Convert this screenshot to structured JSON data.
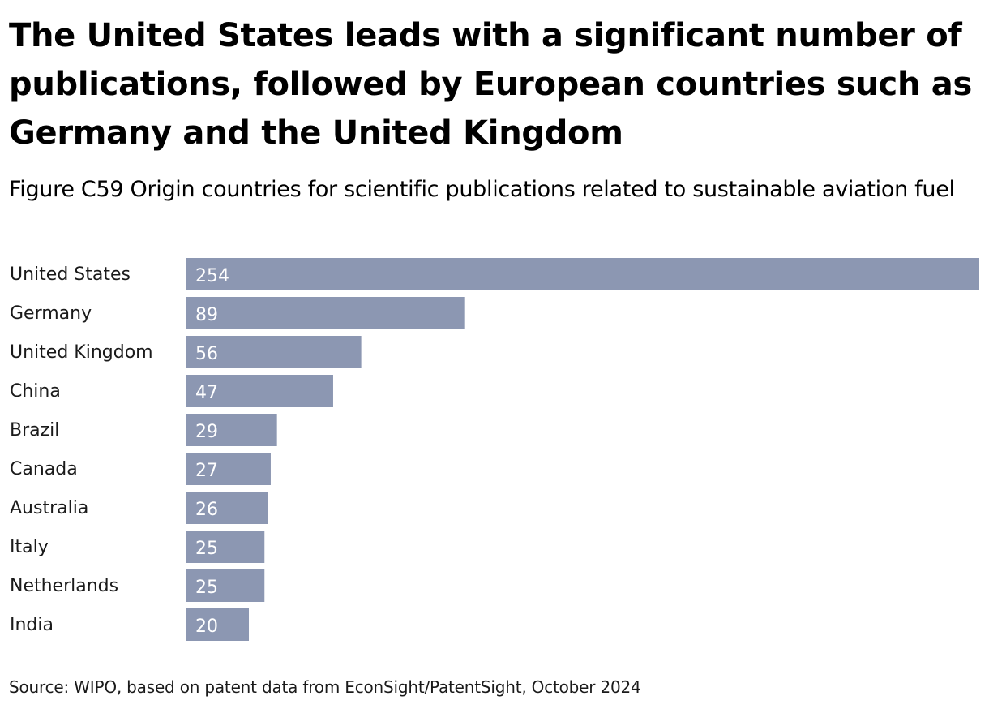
{
  "title": "The United States leads with a significant number of publications, followed by European countries such as Germany and the United Kingdom",
  "subtitle": "Figure C59 Origin countries for scientific publications related to sustainable aviation fuel",
  "source": "Source: WIPO, based on patent data from EconSight/PatentSight, October 2024",
  "colors": {
    "bar": "#8c97b2",
    "bar_label": "#ffffff",
    "text": "#000000"
  },
  "chart_data": {
    "type": "bar",
    "orientation": "horizontal",
    "categories": [
      "United States",
      "Germany",
      "United Kingdom",
      "China",
      "Brazil",
      "Canada",
      "Australia",
      "Italy",
      "Netherlands",
      "India"
    ],
    "values": [
      254,
      89,
      56,
      47,
      29,
      27,
      26,
      25,
      25,
      20
    ],
    "data_labels": true,
    "grid": false,
    "legend": "none",
    "xlim": [
      0,
      254
    ]
  }
}
